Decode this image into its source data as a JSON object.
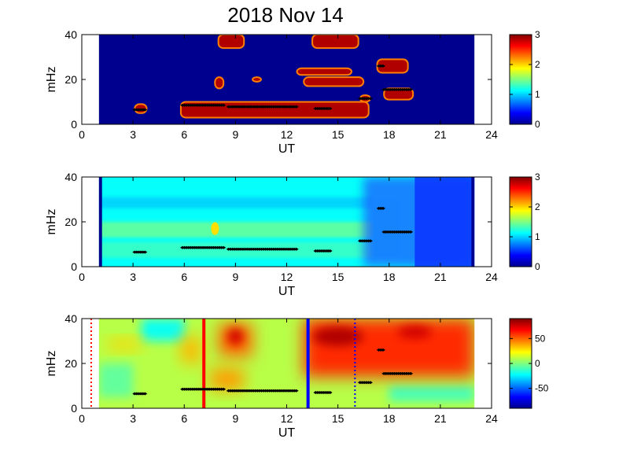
{
  "title": "2018 Nov 14",
  "chart_data": [
    {
      "type": "heatmap",
      "xlabel": "UT",
      "ylabel": "mHz",
      "xlim": [
        0,
        24
      ],
      "ylim": [
        0,
        40
      ],
      "xticks": [
        "0",
        "3",
        "6",
        "9",
        "12",
        "15",
        "18",
        "21",
        "24"
      ],
      "yticks": [
        "0",
        "20",
        "40"
      ],
      "colorbar": {
        "range": [
          0,
          3
        ],
        "ticks": [
          "0",
          "1",
          "2",
          "3"
        ]
      },
      "data_extent": [
        1.0,
        23.0
      ],
      "blobs": [
        {
          "x0": 3.1,
          "x1": 3.8,
          "y0": 5,
          "y1": 9
        },
        {
          "x0": 5.8,
          "x1": 16.8,
          "y0": 3,
          "y1": 10
        },
        {
          "x0": 7.8,
          "x1": 8.3,
          "y0": 16,
          "y1": 21
        },
        {
          "x0": 10.0,
          "x1": 10.5,
          "y0": 19,
          "y1": 21
        },
        {
          "x0": 8.0,
          "x1": 9.5,
          "y0": 34,
          "y1": 40
        },
        {
          "x0": 13.5,
          "x1": 16.2,
          "y0": 34,
          "y1": 40
        },
        {
          "x0": 12.6,
          "x1": 15.8,
          "y0": 22,
          "y1": 25
        },
        {
          "x0": 13.0,
          "x1": 16.5,
          "y0": 17,
          "y1": 21
        },
        {
          "x0": 16.3,
          "x1": 16.9,
          "y0": 10,
          "y1": 13
        },
        {
          "x0": 17.3,
          "x1": 19.1,
          "y0": 23,
          "y1": 29
        },
        {
          "x0": 17.7,
          "x1": 19.4,
          "y0": 11,
          "y1": 16
        }
      ]
    },
    {
      "type": "heatmap",
      "xlabel": "UT",
      "ylabel": "mHz",
      "xlim": [
        0,
        24
      ],
      "ylim": [
        0,
        40
      ],
      "xticks": [
        "0",
        "3",
        "6",
        "9",
        "12",
        "15",
        "18",
        "21",
        "24"
      ],
      "yticks": [
        "0",
        "20",
        "40"
      ],
      "colorbar": {
        "range": [
          0,
          3
        ],
        "ticks": [
          "0",
          "1",
          "2",
          "3"
        ]
      },
      "data_extent": [
        1.0,
        23.0
      ],
      "bands": [
        {
          "y0": 26,
          "y1": 31,
          "level": 0.9
        },
        {
          "y0": 13,
          "y1": 20,
          "level": 1.6
        },
        {
          "y0": 4,
          "y1": 11,
          "level": 1.4
        }
      ]
    },
    {
      "type": "heatmap",
      "xlabel": "UT",
      "ylabel": "mHz",
      "xlim": [
        0,
        24
      ],
      "ylim": [
        0,
        40
      ],
      "xticks": [
        "0",
        "3",
        "6",
        "9",
        "12",
        "15",
        "18",
        "21",
        "24"
      ],
      "yticks": [
        "0",
        "20",
        "40"
      ],
      "colorbar": {
        "range": [
          -90,
          90
        ],
        "ticks": [
          "50",
          "0",
          "-50"
        ],
        "tick_values": [
          50,
          0,
          -50
        ]
      },
      "data_extent": [
        1.0,
        23.0
      ],
      "vertical_lines": [
        {
          "x": 0.55,
          "color": "#ff0000",
          "style": "dotted"
        },
        {
          "x": 7.15,
          "color": "#ff0000",
          "style": "solid"
        },
        {
          "x": 13.25,
          "color": "#0000ff",
          "style": "solid"
        },
        {
          "x": 16.0,
          "color": "#0000ff",
          "style": "dotted"
        }
      ],
      "hot_regions": [
        {
          "x0": 13.0,
          "x1": 23.0,
          "y0": 14,
          "y1": 40,
          "v": 60
        },
        {
          "x0": 8.0,
          "x1": 10.0,
          "y0": 23,
          "y1": 38,
          "v": 50
        },
        {
          "x0": 7.5,
          "x1": 9.5,
          "y0": 8,
          "y1": 18,
          "v": 40
        },
        {
          "x0": 5.8,
          "x1": 7.0,
          "y0": 20,
          "y1": 32,
          "v": 35
        },
        {
          "x0": 1.5,
          "x1": 3.5,
          "y0": 26,
          "y1": 31,
          "v": 30
        }
      ],
      "cool_regions": [
        {
          "x0": 3.5,
          "x1": 6.0,
          "y0": 30,
          "y1": 40,
          "v": -20
        },
        {
          "x0": 1.0,
          "x1": 3.0,
          "y0": 5,
          "y1": 20,
          "v": -5
        },
        {
          "x0": 18.0,
          "x1": 23.0,
          "y0": 3,
          "y1": 10,
          "v": -10
        }
      ]
    }
  ],
  "tracks": [
    {
      "x": [
        3.1,
        3.7
      ],
      "y": 6.5
    },
    {
      "x": [
        5.9,
        8.3
      ],
      "y": 8.5
    },
    {
      "x": [
        8.6,
        12.6
      ],
      "y": 7.8
    },
    {
      "x": [
        13.7,
        14.6
      ],
      "y": 7.0
    },
    {
      "x": [
        16.3,
        16.9
      ],
      "y": 11.5
    },
    {
      "x": [
        17.4,
        17.7
      ],
      "y": 26.0
    },
    {
      "x": [
        17.7,
        19.3
      ],
      "y": 15.5
    }
  ],
  "colors": {
    "jet_low": "#00008f",
    "jet_high": "#800000",
    "marker": "#000000"
  }
}
